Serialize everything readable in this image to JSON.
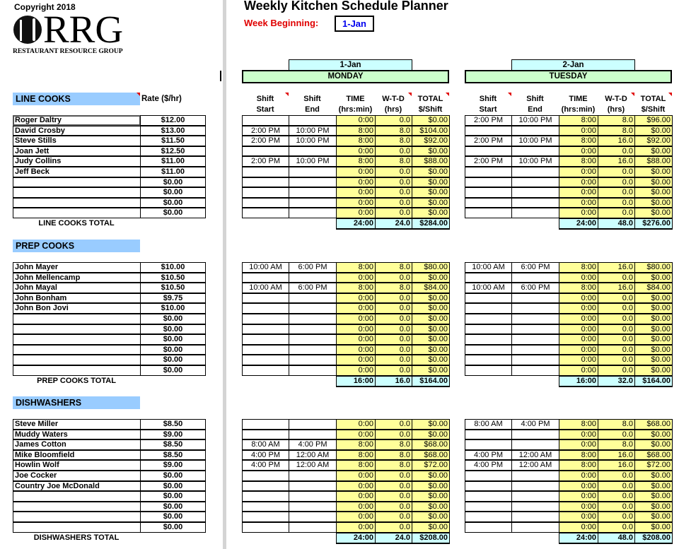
{
  "copyright": "Copyright 2018",
  "logo": {
    "main": "RRG",
    "sub": "RESTAURANT RESOURCE GROUP"
  },
  "title": "Weekly Kitchen Schedule Planner",
  "week_beginning": {
    "label": "Week Beginning:",
    "value": "1-Jan"
  },
  "colors": {
    "section_header": "#99ccff",
    "date_header": "#ccffff",
    "day_header": "#ccffcc",
    "calc_cells": "#ffff99",
    "week_label": "#e00000",
    "week_value": "#0000ee"
  },
  "rate_header": "Rate ($/hr)",
  "days": [
    {
      "date": "1-Jan",
      "day": "MONDAY"
    },
    {
      "date": "2-Jan",
      "day": "TUESDAY"
    }
  ],
  "column_headers": [
    [
      "Shift",
      "Start"
    ],
    [
      "Shift",
      "End"
    ],
    [
      "TIME",
      "(hrs:min)"
    ],
    [
      "W-T-D",
      "(hrs)"
    ],
    [
      "TOTAL",
      "$/Shift"
    ]
  ],
  "sections": [
    {
      "title": "LINE COOKS",
      "total_label": "LINE COOKS TOTAL",
      "employees": [
        {
          "name": "Roger Daltry",
          "rate": "$12.00"
        },
        {
          "name": "David Crosby",
          "rate": "$13.00"
        },
        {
          "name": "Steve Stills",
          "rate": "$11.50"
        },
        {
          "name": "Joan Jett",
          "rate": "$12.50"
        },
        {
          "name": "Judy Collins",
          "rate": "$11.00"
        },
        {
          "name": "Jeff Beck",
          "rate": "$11.00"
        },
        {
          "name": "",
          "rate": "$0.00"
        },
        {
          "name": "",
          "rate": "$0.00"
        },
        {
          "name": "",
          "rate": "$0.00"
        },
        {
          "name": "",
          "rate": "$0.00"
        }
      ],
      "days": [
        {
          "rows": [
            [
              "",
              "",
              "0:00",
              "0.0",
              "$0.00"
            ],
            [
              "2:00 PM",
              "10:00 PM",
              "8:00",
              "8.0",
              "$104.00"
            ],
            [
              "2:00 PM",
              "10:00 PM",
              "8:00",
              "8.0",
              "$92.00"
            ],
            [
              "",
              "",
              "0:00",
              "0.0",
              "$0.00"
            ],
            [
              "2:00 PM",
              "10:00 PM",
              "8:00",
              "8.0",
              "$88.00"
            ],
            [
              "",
              "",
              "0:00",
              "0.0",
              "$0.00"
            ],
            [
              "",
              "",
              "0:00",
              "0.0",
              "$0.00"
            ],
            [
              "",
              "",
              "0:00",
              "0.0",
              "$0.00"
            ],
            [
              "",
              "",
              "0:00",
              "0.0",
              "$0.00"
            ],
            [
              "",
              "",
              "0:00",
              "0.0",
              "$0.00"
            ]
          ],
          "totals": [
            "24:00",
            "24.0",
            "$284.00"
          ]
        },
        {
          "rows": [
            [
              "2:00 PM",
              "10:00 PM",
              "8:00",
              "8.0",
              "$96.00"
            ],
            [
              "",
              "",
              "0:00",
              "8.0",
              "$0.00"
            ],
            [
              "2:00 PM",
              "10:00 PM",
              "8:00",
              "16.0",
              "$92.00"
            ],
            [
              "",
              "",
              "0:00",
              "0.0",
              "$0.00"
            ],
            [
              "2:00 PM",
              "10:00 PM",
              "8:00",
              "16.0",
              "$88.00"
            ],
            [
              "",
              "",
              "0:00",
              "0.0",
              "$0.00"
            ],
            [
              "",
              "",
              "0:00",
              "0.0",
              "$0.00"
            ],
            [
              "",
              "",
              "0:00",
              "0.0",
              "$0.00"
            ],
            [
              "",
              "",
              "0:00",
              "0.0",
              "$0.00"
            ],
            [
              "",
              "",
              "0:00",
              "0.0",
              "$0.00"
            ]
          ],
          "totals": [
            "24:00",
            "48.0",
            "$276.00"
          ]
        }
      ]
    },
    {
      "title": "PREP COOKS",
      "total_label": "PREP COOKS TOTAL",
      "employees": [
        {
          "name": "John Mayer",
          "rate": "$10.00"
        },
        {
          "name": "John Mellencamp",
          "rate": "$10.50"
        },
        {
          "name": "John Mayal",
          "rate": "$10.50"
        },
        {
          "name": "John Bonham",
          "rate": "$9.75"
        },
        {
          "name": "John Bon Jovi",
          "rate": "$10.00"
        },
        {
          "name": "",
          "rate": "$0.00"
        },
        {
          "name": "",
          "rate": "$0.00"
        },
        {
          "name": "",
          "rate": "$0.00"
        },
        {
          "name": "",
          "rate": "$0.00"
        },
        {
          "name": "",
          "rate": "$0.00"
        },
        {
          "name": "",
          "rate": "$0.00"
        }
      ],
      "days": [
        {
          "rows": [
            [
              "10:00 AM",
              "6:00 PM",
              "8:00",
              "8.0",
              "$80.00"
            ],
            [
              "",
              "",
              "0:00",
              "0.0",
              "$0.00"
            ],
            [
              "10:00 AM",
              "6:00 PM",
              "8:00",
              "8.0",
              "$84.00"
            ],
            [
              "",
              "",
              "0:00",
              "0.0",
              "$0.00"
            ],
            [
              "",
              "",
              "0:00",
              "0.0",
              "$0.00"
            ],
            [
              "",
              "",
              "0:00",
              "0.0",
              "$0.00"
            ],
            [
              "",
              "",
              "0:00",
              "0.0",
              "$0.00"
            ],
            [
              "",
              "",
              "0:00",
              "0.0",
              "$0.00"
            ],
            [
              "",
              "",
              "0:00",
              "0.0",
              "$0.00"
            ],
            [
              "",
              "",
              "0:00",
              "0.0",
              "$0.00"
            ],
            [
              "",
              "",
              "0:00",
              "0.0",
              "$0.00"
            ]
          ],
          "totals": [
            "16:00",
            "16.0",
            "$164.00"
          ]
        },
        {
          "rows": [
            [
              "10:00 AM",
              "6:00 PM",
              "8:00",
              "16.0",
              "$80.00"
            ],
            [
              "",
              "",
              "0:00",
              "0.0",
              "$0.00"
            ],
            [
              "10:00 AM",
              "6:00 PM",
              "8:00",
              "16.0",
              "$84.00"
            ],
            [
              "",
              "",
              "0:00",
              "0.0",
              "$0.00"
            ],
            [
              "",
              "",
              "0:00",
              "0.0",
              "$0.00"
            ],
            [
              "",
              "",
              "0:00",
              "0.0",
              "$0.00"
            ],
            [
              "",
              "",
              "0:00",
              "0.0",
              "$0.00"
            ],
            [
              "",
              "",
              "0:00",
              "0.0",
              "$0.00"
            ],
            [
              "",
              "",
              "0:00",
              "0.0",
              "$0.00"
            ],
            [
              "",
              "",
              "0:00",
              "0.0",
              "$0.00"
            ],
            [
              "",
              "",
              "0:00",
              "0.0",
              "$0.00"
            ]
          ],
          "totals": [
            "16:00",
            "32.0",
            "$164.00"
          ]
        }
      ]
    },
    {
      "title": "DISHWASHERS",
      "total_label": "DISHWASHERS TOTAL",
      "employees": [
        {
          "name": "Steve Miller",
          "rate": "$8.50"
        },
        {
          "name": "Muddy Waters",
          "rate": "$9.00"
        },
        {
          "name": "James Cotton",
          "rate": "$8.50"
        },
        {
          "name": "Mike Bloomfield",
          "rate": "$8.50"
        },
        {
          "name": "Howlin Wolf",
          "rate": "$9.00"
        },
        {
          "name": "Joe Cocker",
          "rate": "$0.00"
        },
        {
          "name": "Country Joe McDonald",
          "rate": "$0.00"
        },
        {
          "name": "",
          "rate": "$0.00"
        },
        {
          "name": "",
          "rate": "$0.00"
        },
        {
          "name": "",
          "rate": "$0.00"
        },
        {
          "name": "",
          "rate": "$0.00"
        }
      ],
      "days": [
        {
          "rows": [
            [
              "",
              "",
              "0:00",
              "0.0",
              "$0.00"
            ],
            [
              "",
              "",
              "0:00",
              "0.0",
              "$0.00"
            ],
            [
              "8:00 AM",
              "4:00 PM",
              "8:00",
              "8.0",
              "$68.00"
            ],
            [
              "4:00 PM",
              "12:00 AM",
              "8:00",
              "8.0",
              "$68.00"
            ],
            [
              "4:00 PM",
              "12:00 AM",
              "8:00",
              "8.0",
              "$72.00"
            ],
            [
              "",
              "",
              "0:00",
              "0.0",
              "$0.00"
            ],
            [
              "",
              "",
              "0:00",
              "0.0",
              "$0.00"
            ],
            [
              "",
              "",
              "0:00",
              "0.0",
              "$0.00"
            ],
            [
              "",
              "",
              "0:00",
              "0.0",
              "$0.00"
            ],
            [
              "",
              "",
              "0:00",
              "0.0",
              "$0.00"
            ],
            [
              "",
              "",
              "0:00",
              "0.0",
              "$0.00"
            ]
          ],
          "totals": [
            "24:00",
            "24.0",
            "$208.00"
          ]
        },
        {
          "rows": [
            [
              "8:00 AM",
              "4:00 PM",
              "8:00",
              "8.0",
              "$68.00"
            ],
            [
              "",
              "",
              "0:00",
              "0.0",
              "$0.00"
            ],
            [
              "",
              "",
              "0:00",
              "8.0",
              "$0.00"
            ],
            [
              "4:00 PM",
              "12:00 AM",
              "8:00",
              "16.0",
              "$68.00"
            ],
            [
              "4:00 PM",
              "12:00 AM",
              "8:00",
              "16.0",
              "$72.00"
            ],
            [
              "",
              "",
              "0:00",
              "0.0",
              "$0.00"
            ],
            [
              "",
              "",
              "0:00",
              "0.0",
              "$0.00"
            ],
            [
              "",
              "",
              "0:00",
              "0.0",
              "$0.00"
            ],
            [
              "",
              "",
              "0:00",
              "0.0",
              "$0.00"
            ],
            [
              "",
              "",
              "0:00",
              "0.0",
              "$0.00"
            ],
            [
              "",
              "",
              "0:00",
              "0.0",
              "$0.00"
            ]
          ],
          "totals": [
            "24:00",
            "48.0",
            "$208.00"
          ]
        }
      ]
    }
  ]
}
